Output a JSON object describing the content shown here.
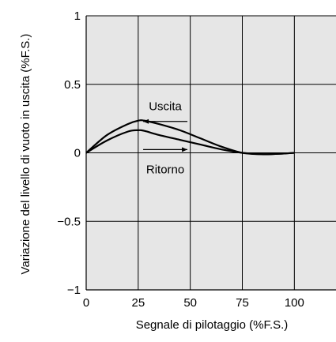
{
  "chart_data": {
    "type": "line",
    "title": "",
    "xlabel": "Segnale di pilotaggio (%F.S.)",
    "ylabel": "Variazione del livello di vuoto in uscita  (%F.S.)",
    "xlim": [
      0,
      120
    ],
    "ylim": [
      -1,
      1
    ],
    "xticks": [
      0,
      25,
      50,
      75,
      100
    ],
    "yticks": [
      1,
      0.5,
      0,
      -0.5,
      -1
    ],
    "xtick_labels": [
      "0",
      "25",
      "50",
      "75",
      "100"
    ],
    "ytick_labels": [
      "1",
      "0.5",
      "0",
      "−0.5",
      "−1"
    ],
    "grid": true,
    "plot_background": "#e6e6e6",
    "series": [
      {
        "name": "Uscita",
        "x": [
          0,
          10,
          20,
          25,
          28,
          35,
          45,
          55,
          65,
          75,
          85,
          95,
          100
        ],
        "y": [
          0,
          0.13,
          0.21,
          0.235,
          0.235,
          0.21,
          0.165,
          0.105,
          0.045,
          0,
          -0.01,
          -0.005,
          0
        ]
      },
      {
        "name": "Ritorno",
        "x": [
          0,
          10,
          20,
          25,
          28,
          35,
          45,
          55,
          65,
          75,
          85,
          95,
          100
        ],
        "y": [
          0,
          0.09,
          0.155,
          0.165,
          0.16,
          0.13,
          0.095,
          0.06,
          0.025,
          0,
          -0.01,
          -0.005,
          0
        ]
      }
    ],
    "annotations": [
      {
        "text": "Uscita",
        "arrow": "left",
        "x": 38,
        "y": 0.31
      },
      {
        "text": "Ritorno",
        "arrow": "right",
        "x": 38,
        "y": -0.08
      }
    ],
    "line_color": "#000000"
  }
}
